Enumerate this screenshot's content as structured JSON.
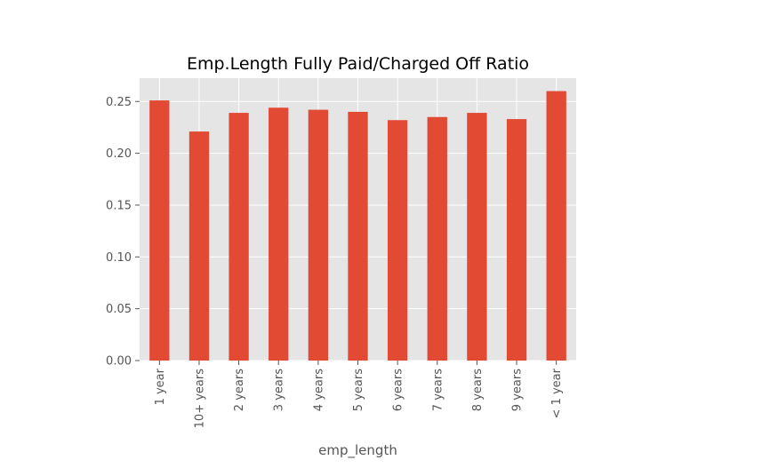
{
  "chart_data": {
    "type": "bar",
    "title": "Emp.Length Fully Paid/Charged Off Ratio",
    "xlabel": "emp_length",
    "ylabel": "",
    "categories": [
      "1 year",
      "10+ years",
      "2 years",
      "3 years",
      "4 years",
      "5 years",
      "6 years",
      "7 years",
      "8 years",
      "9 years",
      "< 1 year"
    ],
    "values": [
      0.251,
      0.221,
      0.239,
      0.244,
      0.242,
      0.24,
      0.232,
      0.235,
      0.239,
      0.233,
      0.26
    ],
    "ylim": [
      0,
      0.2725
    ],
    "yticks": [
      0.0,
      0.05,
      0.1,
      0.15,
      0.2,
      0.25
    ],
    "ytick_labels": [
      "0.00",
      "0.05",
      "0.10",
      "0.15",
      "0.20",
      "0.25"
    ],
    "grid": true,
    "legend": "none",
    "colors": {
      "bar": "#E24A33",
      "plot_background": "#E5E5E5",
      "grid": "#FFFFFF",
      "tick_text": "#555555",
      "title_text": "#000000"
    }
  }
}
